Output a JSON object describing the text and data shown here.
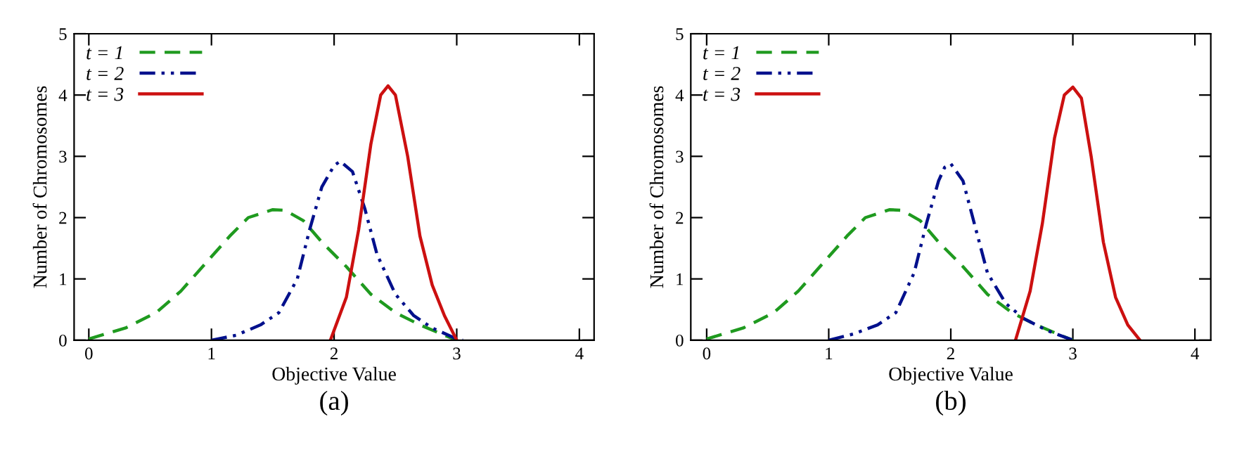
{
  "chart_data": [
    {
      "type": "line",
      "xlabel": "Objective Value",
      "ylabel": "Number of Chromosomes",
      "annotations": [
        "(a)"
      ],
      "xlim": [
        -0.12,
        4.12
      ],
      "ylim": [
        0,
        5
      ],
      "xticks": [
        0,
        1,
        2,
        3,
        4
      ],
      "yticks": [
        0,
        1,
        2,
        3,
        4,
        5
      ],
      "grid": false,
      "legend": "top left",
      "series": [
        {
          "name": "t = 1",
          "color": "#1f9a1f",
          "line_style": "dashed",
          "x": [
            0,
            0.3,
            0.55,
            0.75,
            0.95,
            1.15,
            1.3,
            1.5,
            1.6,
            1.75,
            1.9,
            2.1,
            2.3,
            2.5,
            2.7,
            2.9,
            3.0
          ],
          "values": [
            0.02,
            0.2,
            0.45,
            0.8,
            1.25,
            1.7,
            2.0,
            2.13,
            2.12,
            1.95,
            1.6,
            1.2,
            0.75,
            0.45,
            0.25,
            0.08,
            0
          ]
        },
        {
          "name": "t = 2",
          "color": "#00108c",
          "line_style": "dashdot",
          "x": [
            1.0,
            1.2,
            1.4,
            1.55,
            1.7,
            1.8,
            1.9,
            2.0,
            2.05,
            2.15,
            2.25,
            2.35,
            2.5,
            2.65,
            2.8,
            3.0,
            3.05
          ],
          "values": [
            0,
            0.08,
            0.25,
            0.45,
            1.0,
            1.8,
            2.5,
            2.85,
            2.92,
            2.75,
            2.15,
            1.4,
            0.75,
            0.4,
            0.2,
            0.02,
            0
          ]
        },
        {
          "name": "t = 3",
          "color": "#cc1010",
          "line_style": "solid",
          "x": [
            1.97,
            2.1,
            2.2,
            2.3,
            2.38,
            2.44,
            2.5,
            2.6,
            2.7,
            2.8,
            2.9,
            3.0
          ],
          "values": [
            0,
            0.7,
            1.8,
            3.2,
            4.0,
            4.15,
            4.0,
            3.0,
            1.7,
            0.9,
            0.4,
            0
          ]
        }
      ]
    },
    {
      "type": "line",
      "xlabel": "Objective Value",
      "ylabel": "Number of Chromosomes",
      "annotations": [
        "(b)"
      ],
      "xlim": [
        -0.13,
        4.13
      ],
      "ylim": [
        0,
        5
      ],
      "xticks": [
        0,
        1,
        2,
        3,
        4
      ],
      "yticks": [
        0,
        1,
        2,
        3,
        4,
        5
      ],
      "grid": false,
      "legend": "top left",
      "series": [
        {
          "name": "t = 1",
          "color": "#1f9a1f",
          "line_style": "dashed",
          "x": [
            0,
            0.3,
            0.55,
            0.75,
            0.95,
            1.15,
            1.3,
            1.5,
            1.6,
            1.75,
            1.9,
            2.1,
            2.3,
            2.5,
            2.7,
            2.9,
            3.0
          ],
          "values": [
            0.02,
            0.2,
            0.45,
            0.8,
            1.25,
            1.7,
            2.0,
            2.13,
            2.12,
            1.95,
            1.6,
            1.2,
            0.75,
            0.45,
            0.25,
            0.08,
            0
          ]
        },
        {
          "name": "t = 2",
          "color": "#00108c",
          "line_style": "dashdot",
          "x": [
            1.0,
            1.2,
            1.4,
            1.55,
            1.7,
            1.8,
            1.9,
            1.95,
            2.0,
            2.1,
            2.2,
            2.3,
            2.45,
            2.6,
            2.8,
            3.0
          ],
          "values": [
            0,
            0.1,
            0.25,
            0.45,
            1.1,
            1.9,
            2.6,
            2.82,
            2.88,
            2.6,
            1.85,
            1.1,
            0.6,
            0.35,
            0.15,
            0
          ]
        },
        {
          "name": "t = 3",
          "color": "#cc1010",
          "line_style": "solid",
          "x": [
            2.53,
            2.65,
            2.75,
            2.85,
            2.93,
            3.0,
            3.07,
            3.15,
            3.25,
            3.35,
            3.45,
            3.55
          ],
          "values": [
            0,
            0.8,
            1.9,
            3.3,
            4.0,
            4.13,
            3.95,
            3.0,
            1.6,
            0.7,
            0.25,
            0
          ]
        }
      ]
    }
  ]
}
